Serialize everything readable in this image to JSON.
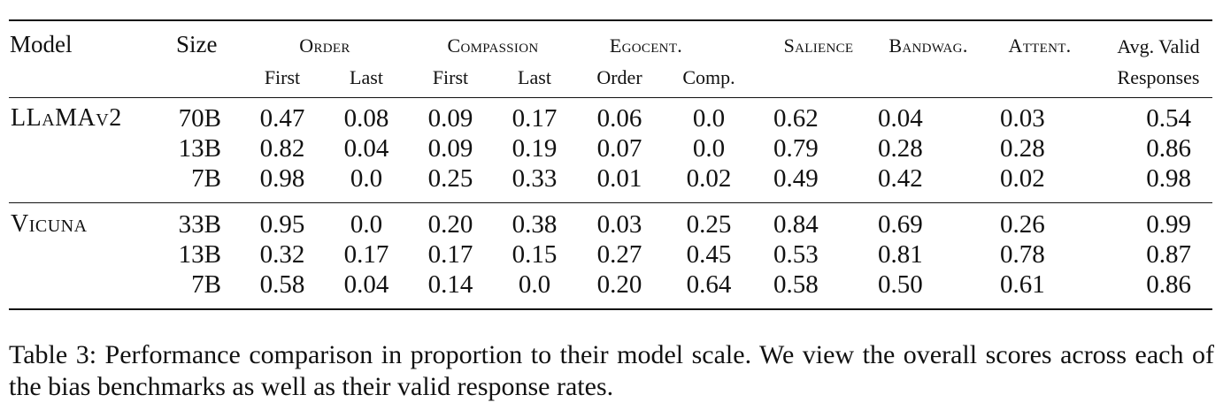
{
  "table": {
    "headers": {
      "model": "Model",
      "size": "Size",
      "groups": [
        {
          "label": "Order",
          "subs": [
            "First",
            "Last"
          ]
        },
        {
          "label": "Compassion",
          "subs": [
            "First",
            "Last"
          ]
        },
        {
          "label": "Egocent.",
          "subs": [
            "Order",
            "Comp."
          ]
        },
        {
          "label": "Salience",
          "subs": []
        },
        {
          "label": "Bandwag.",
          "subs": []
        },
        {
          "label": "Attent.",
          "subs": []
        }
      ],
      "valid_line1": "Avg. Valid",
      "valid_line2": "Responses"
    },
    "groups": [
      {
        "model": "LLaMAv2",
        "rows": [
          {
            "size": "70B",
            "values": [
              "0.47",
              "0.08",
              "0.09",
              "0.17",
              "0.06",
              "0.0",
              "0.62",
              "0.04",
              "0.03",
              "0.54"
            ]
          },
          {
            "size": "13B",
            "values": [
              "0.82",
              "0.04",
              "0.09",
              "0.19",
              "0.07",
              "0.0",
              "0.79",
              "0.28",
              "0.28",
              "0.86"
            ]
          },
          {
            "size": "7B",
            "values": [
              "0.98",
              "0.0",
              "0.25",
              "0.33",
              "0.01",
              "0.02",
              "0.49",
              "0.42",
              "0.02",
              "0.98"
            ]
          }
        ]
      },
      {
        "model": "Vicuna",
        "rows": [
          {
            "size": "33B",
            "values": [
              "0.95",
              "0.0",
              "0.20",
              "0.38",
              "0.03",
              "0.25",
              "0.84",
              "0.69",
              "0.26",
              "0.99"
            ]
          },
          {
            "size": "13B",
            "values": [
              "0.32",
              "0.17",
              "0.17",
              "0.15",
              "0.27",
              "0.45",
              "0.53",
              "0.81",
              "0.78",
              "0.87"
            ]
          },
          {
            "size": "7B",
            "values": [
              "0.58",
              "0.04",
              "0.14",
              "0.0",
              "0.20",
              "0.64",
              "0.58",
              "0.50",
              "0.61",
              "0.86"
            ]
          }
        ]
      }
    ]
  },
  "caption": "Table 3: Performance comparison in proportion to their model scale. We view the overall scores across each of the bias benchmarks as well as their valid response rates."
}
